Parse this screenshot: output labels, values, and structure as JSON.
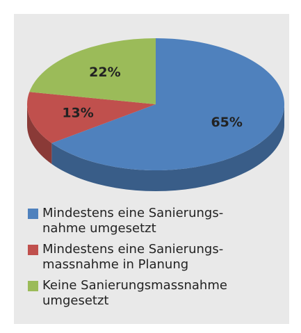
{
  "chart_data": {
    "type": "pie",
    "categories": [
      "Mindestens eine Sanierungs-\nnahme umgesetzt",
      "Mindestens eine Sanierungs-\nmassnahme in Planung",
      "Keine Sanierungsmassnahme\numgesetzt"
    ],
    "values": [
      65,
      13,
      22
    ],
    "value_labels": [
      "65%",
      "13%",
      "22%"
    ],
    "colors": [
      "#4f81bd",
      "#c0504d",
      "#9bbb59"
    ],
    "legend": "bottom"
  }
}
